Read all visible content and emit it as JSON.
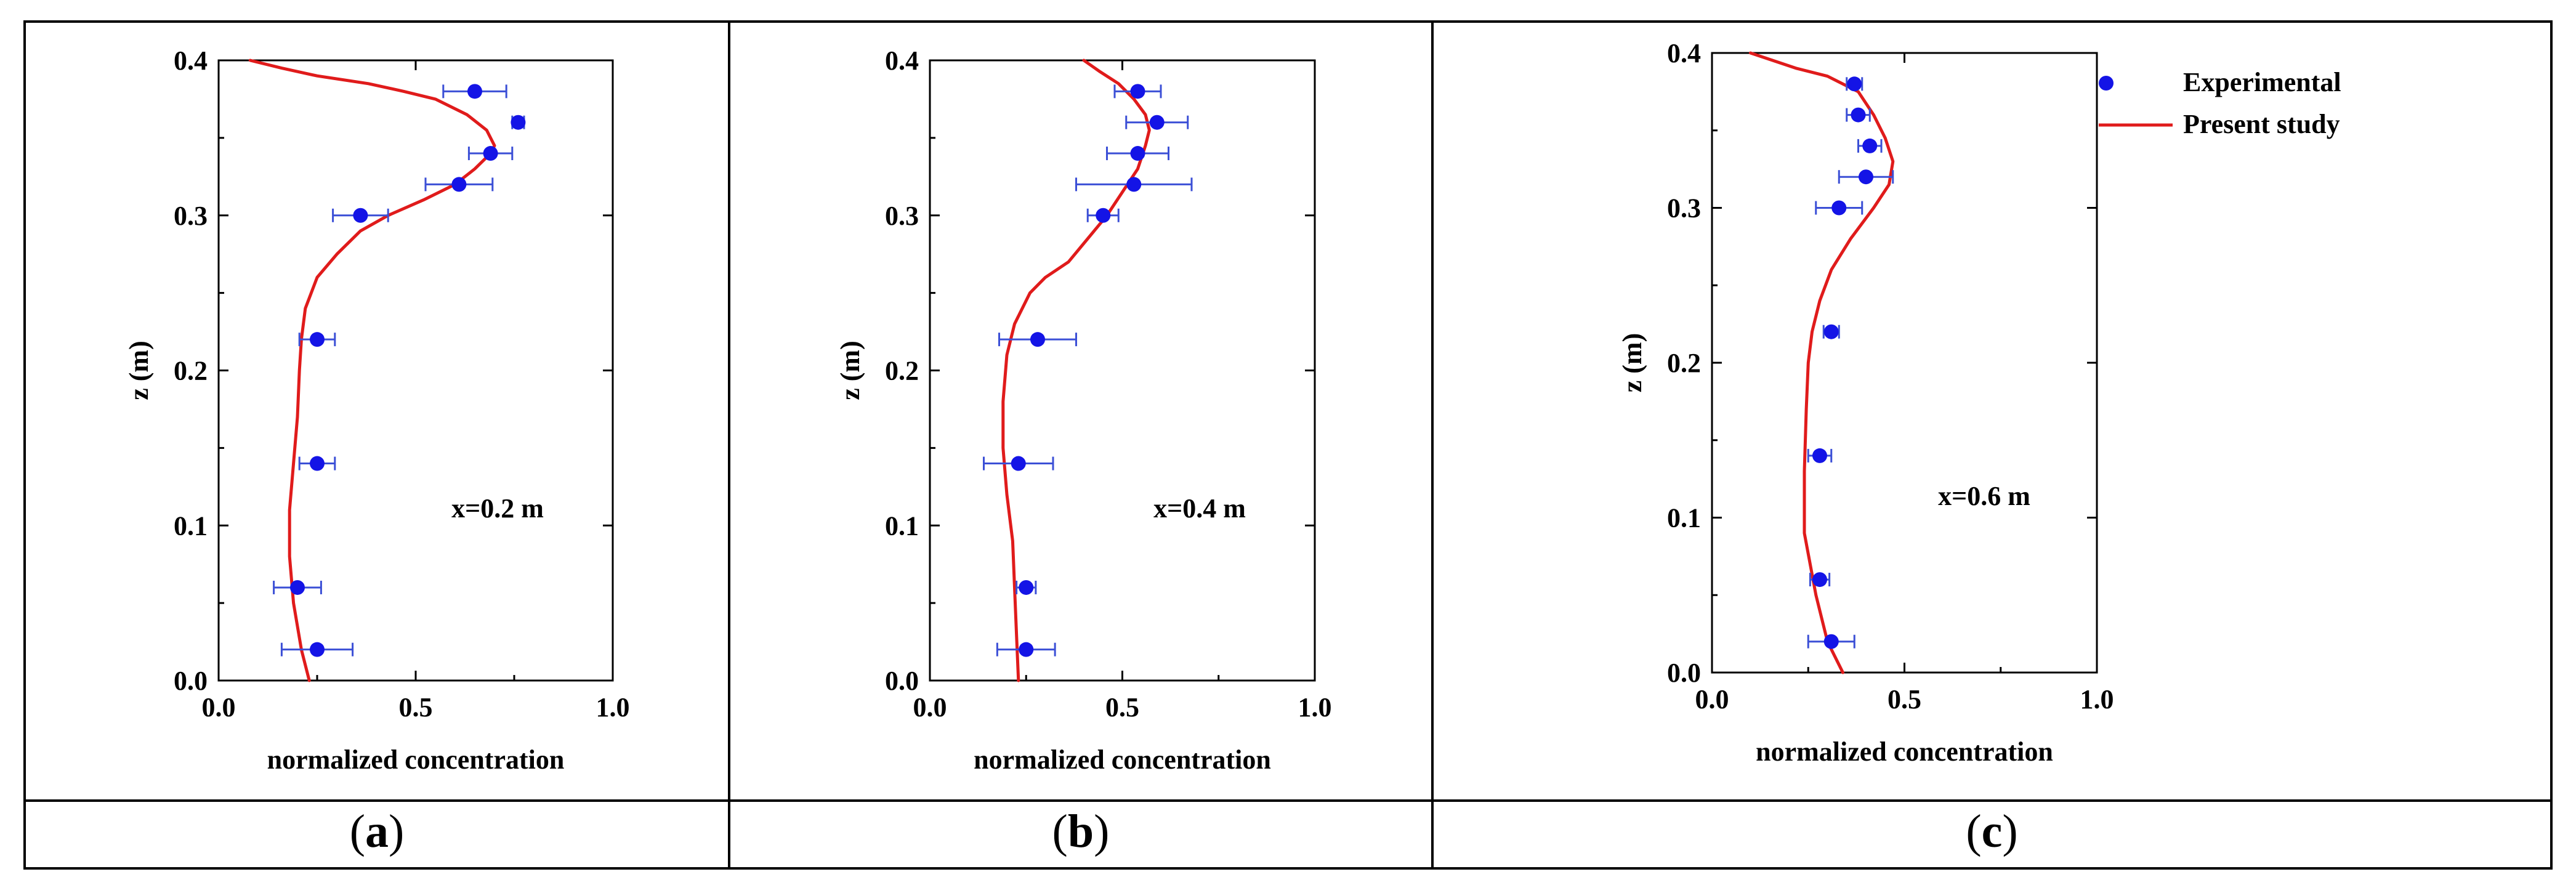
{
  "captions": [
    "a",
    "b",
    "c"
  ],
  "colors": {
    "experimental": "#1414e6",
    "model": "#e01b1b",
    "errorbar": "#3b4fd6",
    "frame": "#000000"
  },
  "chart_data": [
    {
      "type": "scatter",
      "panel": "a",
      "xlabel": "normalized concentration",
      "ylabel": "z (m)",
      "xlim": [
        0,
        1
      ],
      "ylim": [
        0,
        0.4
      ],
      "xticks": [
        0,
        0.5,
        1
      ],
      "xtick_labels": [
        "0.0",
        "0.5",
        "1.0"
      ],
      "yticks": [
        0,
        0.1,
        0.2,
        0.3,
        0.4
      ],
      "ytick_labels": [
        "0.0",
        "0.1",
        "0.2",
        "0.3",
        "0.4"
      ],
      "annotation": "x=0.2 m",
      "series": [
        {
          "name": "Experimental",
          "kind": "points",
          "points": [
            {
              "x": 0.65,
              "y": 0.38,
              "xerr": 0.08
            },
            {
              "x": 0.76,
              "y": 0.36,
              "xerr": 0.015
            },
            {
              "x": 0.69,
              "y": 0.34,
              "xerr": 0.055
            },
            {
              "x": 0.61,
              "y": 0.32,
              "xerr": 0.085
            },
            {
              "x": 0.36,
              "y": 0.3,
              "xerr": 0.07
            },
            {
              "x": 0.25,
              "y": 0.22,
              "xerr": 0.045
            },
            {
              "x": 0.25,
              "y": 0.14,
              "xerr": 0.045
            },
            {
              "x": 0.2,
              "y": 0.06,
              "xerr": 0.06
            },
            {
              "x": 0.25,
              "y": 0.02,
              "xerr": 0.09
            }
          ]
        },
        {
          "name": "Present study",
          "kind": "line",
          "x": [
            0.23,
            0.21,
            0.19,
            0.18,
            0.18,
            0.19,
            0.2,
            0.205,
            0.21,
            0.22,
            0.25,
            0.3,
            0.36,
            0.43,
            0.52,
            0.6,
            0.65,
            0.69,
            0.7,
            0.68,
            0.63,
            0.55,
            0.47,
            0.38,
            0.25,
            0.16,
            0.08
          ],
          "y": [
            0.0,
            0.02,
            0.05,
            0.08,
            0.11,
            0.14,
            0.17,
            0.2,
            0.22,
            0.24,
            0.26,
            0.275,
            0.29,
            0.3,
            0.31,
            0.32,
            0.33,
            0.34,
            0.345,
            0.355,
            0.365,
            0.375,
            0.38,
            0.385,
            0.39,
            0.395,
            0.4
          ]
        }
      ]
    },
    {
      "type": "scatter",
      "panel": "b",
      "xlabel": "normalized concentration",
      "ylabel": "z (m)",
      "xlim": [
        0,
        1
      ],
      "ylim": [
        0,
        0.4
      ],
      "xticks": [
        0,
        0.5,
        1
      ],
      "xtick_labels": [
        "0.0",
        "0.5",
        "1.0"
      ],
      "yticks": [
        0,
        0.1,
        0.2,
        0.3,
        0.4
      ],
      "ytick_labels": [
        "0.0",
        "0.1",
        "0.2",
        "0.3",
        "0.4"
      ],
      "annotation": "x=0.4 m",
      "series": [
        {
          "name": "Experimental",
          "kind": "points",
          "points": [
            {
              "x": 0.54,
              "y": 0.38,
              "xerr": 0.06
            },
            {
              "x": 0.59,
              "y": 0.36,
              "xerr": 0.08
            },
            {
              "x": 0.54,
              "y": 0.34,
              "xerr": 0.08
            },
            {
              "x": 0.53,
              "y": 0.32,
              "xerr": 0.15
            },
            {
              "x": 0.45,
              "y": 0.3,
              "xerr": 0.04
            },
            {
              "x": 0.28,
              "y": 0.22,
              "xerr": 0.1
            },
            {
              "x": 0.23,
              "y": 0.14,
              "xerr": 0.09
            },
            {
              "x": 0.25,
              "y": 0.06,
              "xerr": 0.025
            },
            {
              "x": 0.25,
              "y": 0.02,
              "xerr": 0.075
            }
          ]
        },
        {
          "name": "Present study",
          "kind": "line",
          "x": [
            0.23,
            0.225,
            0.22,
            0.215,
            0.2,
            0.19,
            0.19,
            0.2,
            0.22,
            0.26,
            0.3,
            0.36,
            0.41,
            0.46,
            0.5,
            0.54,
            0.56,
            0.57,
            0.56,
            0.53,
            0.49,
            0.44,
            0.4
          ],
          "y": [
            0.0,
            0.03,
            0.06,
            0.09,
            0.12,
            0.15,
            0.18,
            0.21,
            0.23,
            0.25,
            0.26,
            0.27,
            0.285,
            0.3,
            0.315,
            0.33,
            0.345,
            0.355,
            0.365,
            0.375,
            0.385,
            0.393,
            0.4
          ]
        }
      ]
    },
    {
      "type": "scatter",
      "panel": "c",
      "xlabel": "normalized concentration",
      "ylabel": "z (m)",
      "xlim": [
        0,
        1
      ],
      "ylim": [
        0,
        0.4
      ],
      "xticks": [
        0,
        0.5,
        1
      ],
      "xtick_labels": [
        "0.0",
        "0.5",
        "1.0"
      ],
      "yticks": [
        0,
        0.1,
        0.2,
        0.3,
        0.4
      ],
      "ytick_labels": [
        "0.0",
        "0.1",
        "0.2",
        "0.3",
        "0.4"
      ],
      "annotation": "x=0.6 m",
      "legend": [
        "Experimental",
        "Present study"
      ],
      "series": [
        {
          "name": "Experimental",
          "kind": "points",
          "points": [
            {
              "x": 0.37,
              "y": 0.38,
              "xerr": 0.02
            },
            {
              "x": 0.38,
              "y": 0.36,
              "xerr": 0.03
            },
            {
              "x": 0.41,
              "y": 0.34,
              "xerr": 0.03
            },
            {
              "x": 0.4,
              "y": 0.32,
              "xerr": 0.07
            },
            {
              "x": 0.33,
              "y": 0.3,
              "xerr": 0.06
            },
            {
              "x": 0.31,
              "y": 0.22,
              "xerr": 0.02
            },
            {
              "x": 0.28,
              "y": 0.14,
              "xerr": 0.03
            },
            {
              "x": 0.28,
              "y": 0.06,
              "xerr": 0.025
            },
            {
              "x": 0.31,
              "y": 0.02,
              "xerr": 0.06
            }
          ]
        },
        {
          "name": "Present study",
          "kind": "line",
          "x": [
            0.34,
            0.3,
            0.27,
            0.24,
            0.24,
            0.245,
            0.25,
            0.26,
            0.28,
            0.31,
            0.36,
            0.42,
            0.46,
            0.47,
            0.45,
            0.42,
            0.38,
            0.3,
            0.22,
            0.1
          ],
          "y": [
            0.0,
            0.02,
            0.05,
            0.09,
            0.13,
            0.17,
            0.2,
            0.22,
            0.24,
            0.26,
            0.28,
            0.3,
            0.315,
            0.33,
            0.345,
            0.36,
            0.375,
            0.385,
            0.39,
            0.4
          ]
        }
      ]
    }
  ]
}
